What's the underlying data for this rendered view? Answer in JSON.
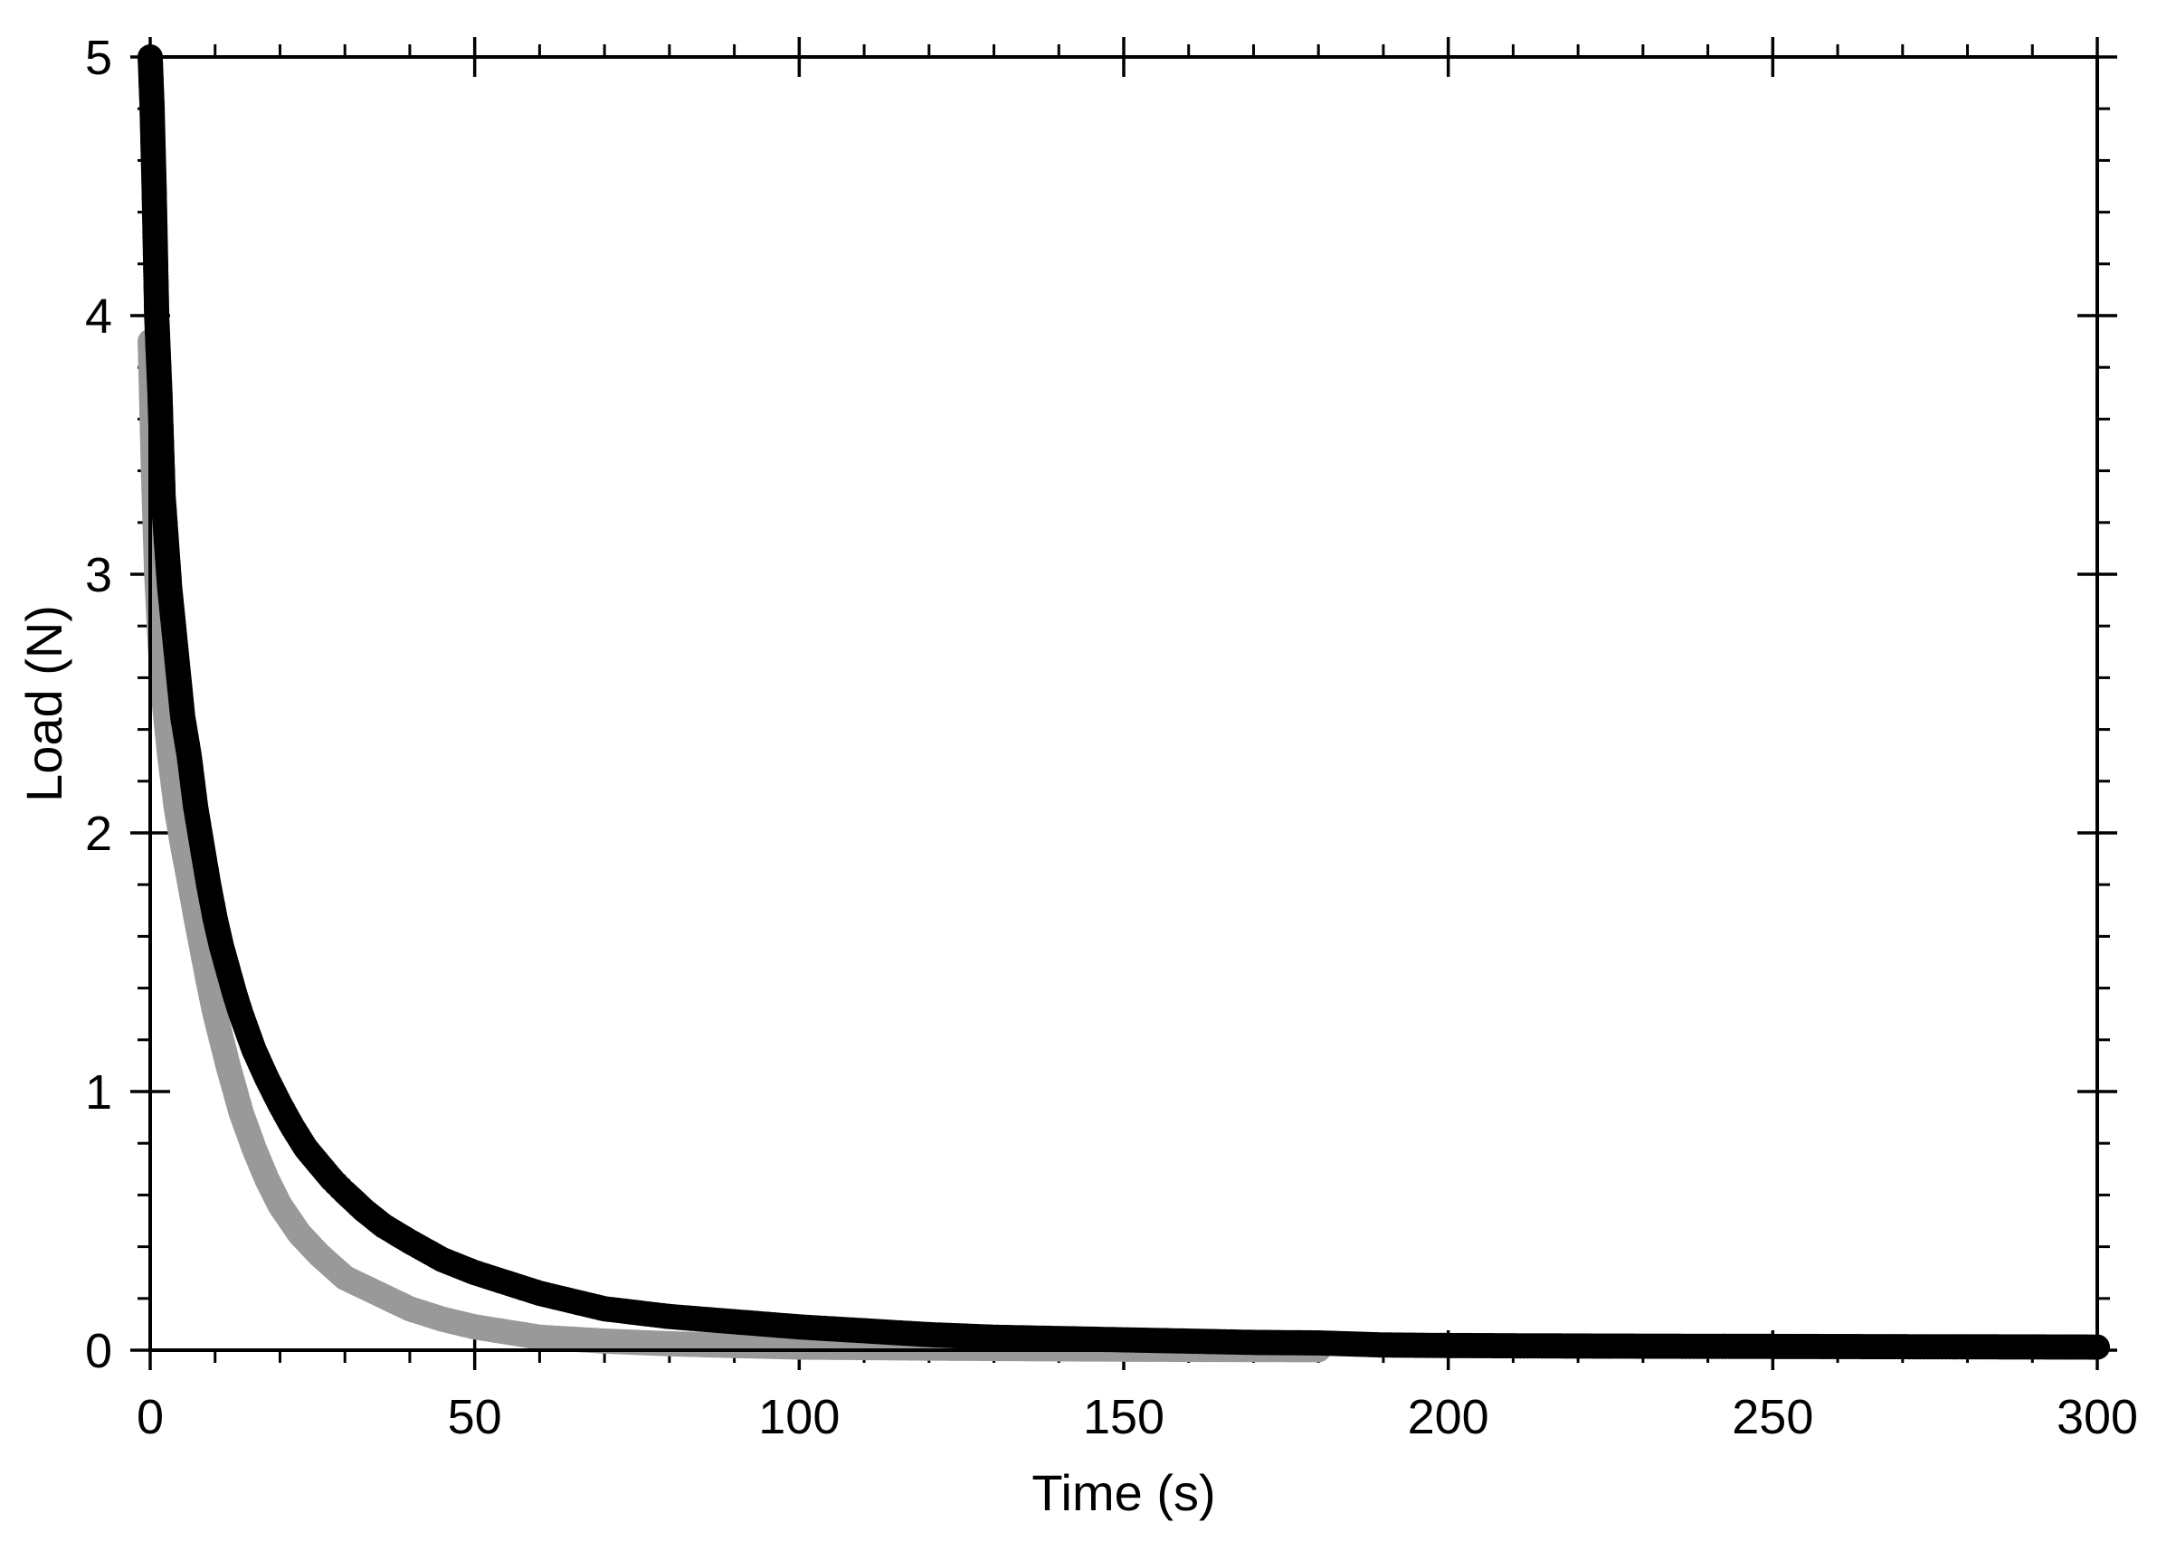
{
  "chart_data": {
    "type": "scatter",
    "title": "",
    "xlabel": "Time (s)",
    "ylabel": "Load (N)",
    "xlim": [
      0,
      300
    ],
    "ylim": [
      0,
      5
    ],
    "x_ticks": [
      0,
      50,
      100,
      150,
      200,
      250,
      300
    ],
    "x_tick_labels": [
      "0",
      "50",
      "100",
      "150",
      "200",
      "250",
      "300"
    ],
    "y_ticks": [
      0,
      1,
      2,
      3,
      4,
      5
    ],
    "y_tick_labels": [
      "0",
      "1",
      "2",
      "3",
      "4",
      "5"
    ],
    "x_minor_step": 10,
    "y_minor_step": 0.2,
    "grid": false,
    "legend": "none",
    "series": [
      {
        "color": "#999999",
        "points": [
          [
            0,
            3.9
          ],
          [
            0.5,
            3.4
          ],
          [
            1,
            3.0
          ],
          [
            1.5,
            2.75
          ],
          [
            2,
            2.55
          ],
          [
            3,
            2.3
          ],
          [
            4,
            2.1
          ],
          [
            5,
            1.95
          ],
          [
            6,
            1.82
          ],
          [
            7,
            1.68
          ],
          [
            8,
            1.55
          ],
          [
            9,
            1.42
          ],
          [
            10,
            1.3
          ],
          [
            12,
            1.1
          ],
          [
            14,
            0.92
          ],
          [
            16,
            0.78
          ],
          [
            18,
            0.66
          ],
          [
            20,
            0.56
          ],
          [
            23,
            0.45
          ],
          [
            26,
            0.37
          ],
          [
            30,
            0.28
          ],
          [
            35,
            0.22
          ],
          [
            40,
            0.16
          ],
          [
            45,
            0.12
          ],
          [
            50,
            0.09
          ],
          [
            55,
            0.07
          ],
          [
            60,
            0.05
          ],
          [
            70,
            0.035
          ],
          [
            80,
            0.025
          ],
          [
            90,
            0.018
          ],
          [
            100,
            0.012
          ],
          [
            120,
            0.008
          ],
          [
            140,
            0.005
          ],
          [
            160,
            0.003
          ],
          [
            180,
            0.002
          ]
        ]
      },
      {
        "color": "#000000",
        "points": [
          [
            0,
            5.0
          ],
          [
            0.3,
            4.8
          ],
          [
            0.6,
            4.5
          ],
          [
            1,
            4.0
          ],
          [
            1.5,
            3.7
          ],
          [
            2,
            3.3
          ],
          [
            3,
            2.95
          ],
          [
            4,
            2.7
          ],
          [
            5,
            2.45
          ],
          [
            6,
            2.3
          ],
          [
            7,
            2.1
          ],
          [
            8,
            1.95
          ],
          [
            9,
            1.8
          ],
          [
            10,
            1.67
          ],
          [
            11,
            1.56
          ],
          [
            12,
            1.47
          ],
          [
            13,
            1.38
          ],
          [
            14,
            1.3
          ],
          [
            15,
            1.23
          ],
          [
            16,
            1.16
          ],
          [
            18,
            1.05
          ],
          [
            20,
            0.95
          ],
          [
            22,
            0.86
          ],
          [
            24,
            0.78
          ],
          [
            26,
            0.72
          ],
          [
            28,
            0.66
          ],
          [
            30,
            0.61
          ],
          [
            33,
            0.54
          ],
          [
            36,
            0.48
          ],
          [
            40,
            0.42
          ],
          [
            45,
            0.35
          ],
          [
            50,
            0.3
          ],
          [
            55,
            0.26
          ],
          [
            60,
            0.22
          ],
          [
            65,
            0.19
          ],
          [
            70,
            0.16
          ],
          [
            80,
            0.13
          ],
          [
            90,
            0.11
          ],
          [
            100,
            0.09
          ],
          [
            110,
            0.075
          ],
          [
            120,
            0.06
          ],
          [
            130,
            0.05
          ],
          [
            140,
            0.045
          ],
          [
            150,
            0.04
          ],
          [
            160,
            0.035
          ],
          [
            170,
            0.03
          ],
          [
            180,
            0.028
          ],
          [
            190,
            0.02
          ],
          [
            200,
            0.018
          ],
          [
            220,
            0.016
          ],
          [
            240,
            0.015
          ],
          [
            260,
            0.014
          ],
          [
            280,
            0.013
          ],
          [
            300,
            0.012
          ]
        ]
      }
    ]
  }
}
